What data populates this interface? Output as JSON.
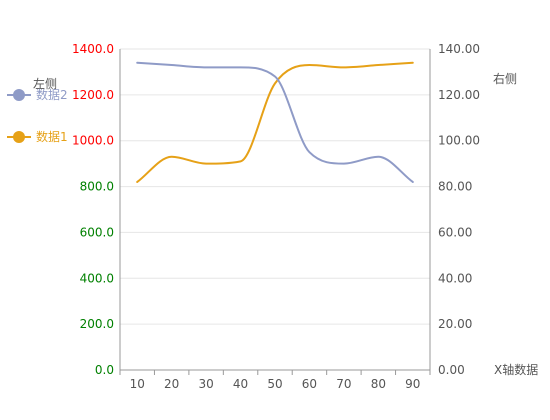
{
  "chart_data": {
    "type": "line",
    "x": [
      10,
      20,
      30,
      40,
      50,
      60,
      70,
      80,
      90
    ],
    "xlabel": "X轴数据",
    "xlim": [
      5,
      95
    ],
    "left_axis": {
      "name": "左侧",
      "range": [
        0,
        1400
      ],
      "ticks": [
        "0.0",
        "200.0",
        "400.0",
        "600.0",
        "800.0",
        "1000.0",
        "1200.0",
        "1400.0"
      ],
      "tick_values": [
        0,
        200,
        400,
        600,
        800,
        1000,
        1200,
        1400
      ],
      "tick_colors": [
        "#008000",
        "#008000",
        "#008000",
        "#008000",
        "#008000",
        "#ff0000",
        "#ff0000",
        "#ff0000"
      ]
    },
    "right_axis": {
      "name": "右侧",
      "range": [
        0,
        140
      ],
      "ticks": [
        "0.00",
        "20.00",
        "40.00",
        "60.00",
        "80.00",
        "100.00",
        "120.00",
        "140.00"
      ],
      "tick_values": [
        0,
        20,
        40,
        60,
        80,
        100,
        120,
        140
      ],
      "tick_color": "#555555"
    },
    "x_ticks": [
      "10",
      "20",
      "30",
      "40",
      "50",
      "60",
      "70",
      "80",
      "90"
    ],
    "series": [
      {
        "name": "数据1",
        "axis": "left",
        "color": "#e6a117",
        "values": [
          820,
          930,
          900,
          910,
          1250,
          1330,
          1320,
          1330,
          1340
        ]
      },
      {
        "name": "数据2",
        "axis": "right",
        "color": "#8f9bc7",
        "values": [
          134,
          133,
          132,
          132,
          128,
          95,
          90,
          93,
          82
        ]
      }
    ],
    "legend_position": "left",
    "grid": true
  }
}
